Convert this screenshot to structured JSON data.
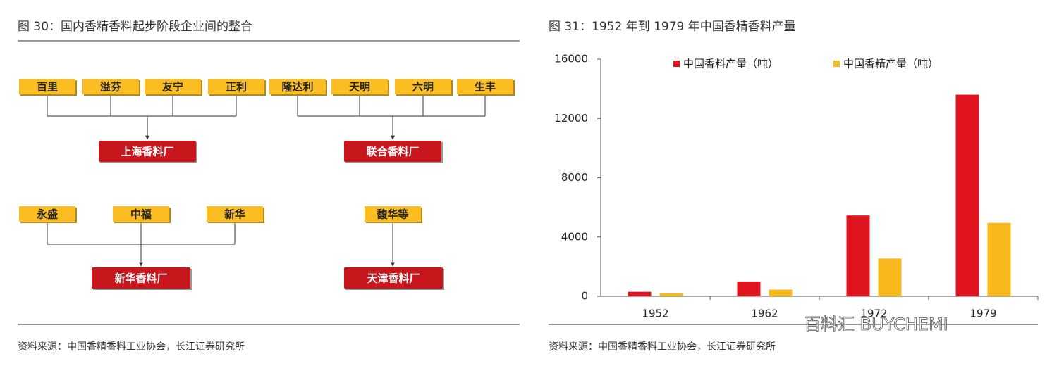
{
  "diagram": {
    "title": "图 30：国内香精香料起步阶段企业间的整合",
    "groups": [
      {
        "sources": [
          "百里",
          "溢芬",
          "友宁",
          "正利"
        ],
        "target": "上海香料厂"
      },
      {
        "sources": [
          "隆达利",
          "天明",
          "六明",
          "生丰"
        ],
        "target": "联合香料厂"
      },
      {
        "sources": [
          "永盛",
          "中福",
          "新华"
        ],
        "target": "新华香料厂"
      },
      {
        "sources": [
          "馥华等"
        ],
        "target": "天津香料厂"
      }
    ],
    "source": "资料来源：中国香精香料工业协会，长江证券研究所"
  },
  "chart_data": {
    "type": "bar",
    "title": "图 31：1952 年到 1979 年中国香精香料产量",
    "categories": [
      "1952",
      "1962",
      "1972",
      "1979"
    ],
    "series": [
      {
        "name": "中国香料产量（吨）",
        "color": "#e0141e",
        "values": [
          300,
          1000,
          5450,
          13600
        ]
      },
      {
        "name": "中国香精产量（吨）",
        "color": "#f7b81c",
        "values": [
          200,
          450,
          2550,
          4950
        ]
      }
    ],
    "ylim": [
      0,
      16000
    ],
    "yticks": [
      0,
      4000,
      8000,
      12000,
      16000
    ],
    "legend": "top",
    "watermark": "百料汇 BUYCHEMI",
    "source": "资料来源：中国香精香料工业协会，长江证券研究所"
  }
}
